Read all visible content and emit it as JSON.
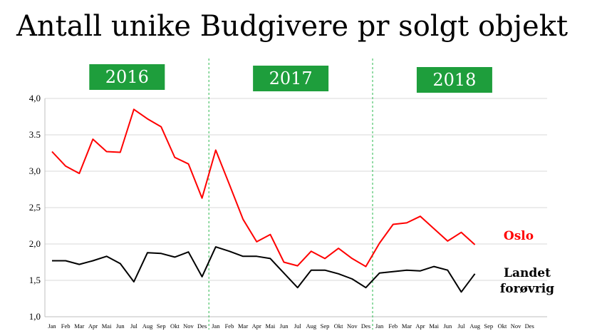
{
  "colors": {
    "oslo": "#ff0000",
    "rest": "#000000",
    "year_box": "#1e9e3c",
    "year_divider": "#4cc46a",
    "grid": "#d9d9d9"
  },
  "chart_data": {
    "type": "line",
    "title": "Antall unike Budgivere pr solgt objekt",
    "ylim": [
      1.0,
      4.0
    ],
    "yticks": [
      "1,0",
      "1,5",
      "2,0",
      "2,5",
      "3,0",
      "3.5",
      "4,0"
    ],
    "ytick_values": [
      1.0,
      1.5,
      2.0,
      2.5,
      3.0,
      3.5,
      4.0
    ],
    "grid": "horizontal",
    "categories": [
      "Jan",
      "Feb",
      "Mar",
      "Apr",
      "Mai",
      "Jun",
      "Jul",
      "Aug",
      "Sep",
      "Okt",
      "Nov",
      "Des",
      "Jan",
      "Feb",
      "Mar",
      "Apr",
      "Mai",
      "Jun",
      "Jul",
      "Aug",
      "Sep",
      "Okt",
      "Nov",
      "Des",
      "Jan",
      "Feb",
      "Mar",
      "Apr",
      "Mai",
      "Jun",
      "Jul",
      "Aug",
      "Sep",
      "Okt",
      "Nov",
      "Des"
    ],
    "year_groups": [
      {
        "label": "2016",
        "start": 0,
        "end": 11
      },
      {
        "label": "2017",
        "start": 12,
        "end": 23
      },
      {
        "label": "2018",
        "start": 24,
        "end": 35
      }
    ],
    "series": [
      {
        "name": "Oslo",
        "color": "#ff0000",
        "values": [
          3.27,
          3.07,
          2.97,
          3.44,
          3.27,
          3.26,
          3.85,
          3.72,
          3.61,
          3.19,
          3.1,
          2.63,
          3.29,
          2.82,
          2.34,
          2.03,
          2.13,
          1.75,
          1.7,
          1.9,
          1.8,
          1.94,
          1.8,
          1.69,
          2.01,
          2.27,
          2.29,
          2.38,
          2.21,
          2.04,
          2.16,
          1.99,
          null,
          null,
          null,
          null
        ]
      },
      {
        "name": "Landet forøvrig",
        "name_lines": [
          "Landet",
          "forøvrig"
        ],
        "color": "#000000",
        "values": [
          1.77,
          1.77,
          1.72,
          1.77,
          1.83,
          1.73,
          1.48,
          1.88,
          1.87,
          1.82,
          1.89,
          1.55,
          1.96,
          1.9,
          1.83,
          1.83,
          1.8,
          1.6,
          1.4,
          1.64,
          1.64,
          1.59,
          1.52,
          1.4,
          1.6,
          1.62,
          1.64,
          1.63,
          1.69,
          1.64,
          1.34,
          1.59,
          null,
          null,
          null,
          null
        ]
      }
    ]
  }
}
